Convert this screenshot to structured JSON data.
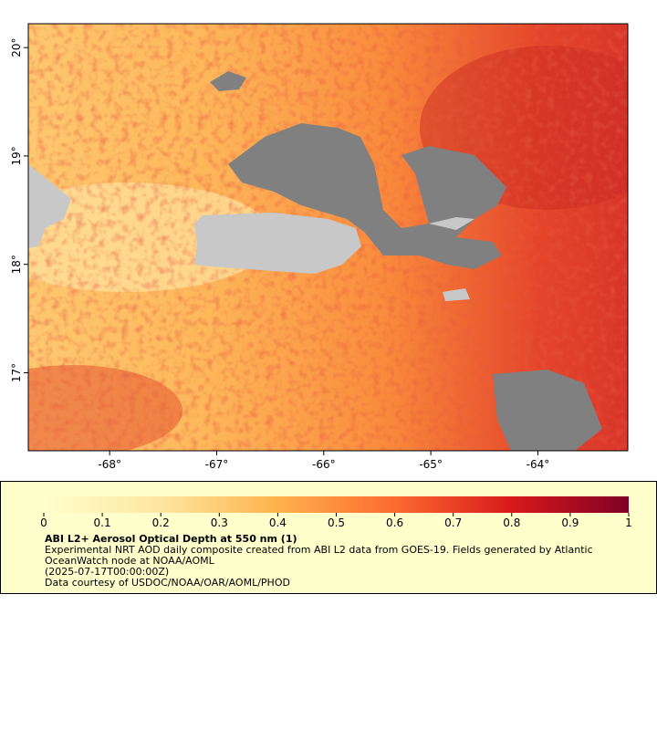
{
  "chart_data": {
    "type": "map",
    "title": "ABI L2+ Aerosol Optical Depth at 550 nm (1)",
    "description": "Experimental NRT AOD daily composite created from ABI L2 data from GOES-19. Fields generated by Atlantic OceanWatch node at NOAA/AOML",
    "time": "(2025-07-17T00:00:00Z)",
    "credit": "Data courtesy of USDOC/NOAA/OAR/AOML/PHOD",
    "xlim": [
      -68.76,
      -63.16
    ],
    "ylim": [
      16.28,
      20.22
    ],
    "xticks": [
      {
        "value": -68,
        "label": "-68°"
      },
      {
        "value": -67,
        "label": "-67°"
      },
      {
        "value": -66,
        "label": "-66°"
      },
      {
        "value": -65,
        "label": "-65°"
      },
      {
        "value": -64,
        "label": "-64°"
      }
    ],
    "yticks": [
      {
        "value": 17,
        "label": "17°"
      },
      {
        "value": 18,
        "label": "18°"
      },
      {
        "value": 19,
        "label": "19°"
      },
      {
        "value": 20,
        "label": "20°"
      }
    ],
    "colorbar_lim": [
      0,
      1
    ],
    "colorbar_ticks": [
      0,
      0.1,
      0.2,
      0.3,
      0.4,
      0.5,
      0.6,
      0.7,
      0.8,
      0.9,
      1
    ]
  }
}
